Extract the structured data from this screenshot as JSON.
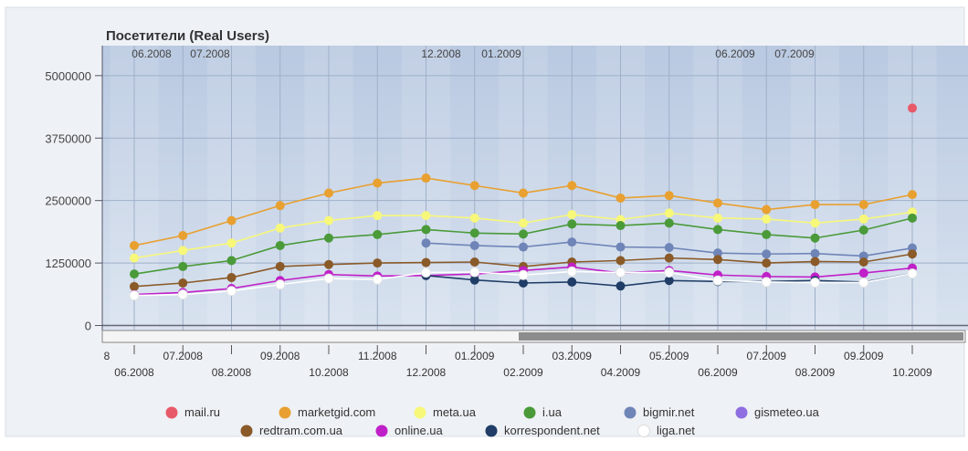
{
  "chart_data": {
    "type": "line",
    "title": "Посетители (Real Users)",
    "x": [
      "06.2008",
      "07.2008",
      "08.2008",
      "09.2008",
      "10.2008",
      "11.2008",
      "12.2008",
      "01.2009",
      "02.2009",
      "03.2009",
      "04.2009",
      "05.2009",
      "06.2009",
      "07.2009",
      "08.2009",
      "09.2009",
      "10.2009"
    ],
    "x_tick_labels_upper": [
      "07.2008",
      "09.2008",
      "11.2008",
      "01.2009",
      "03.2009",
      "05.2009",
      "07.2009",
      "09.2009"
    ],
    "x_tick_labels_lower": [
      "06.2008",
      "08.2008",
      "10.2008",
      "12.2008",
      "02.2009",
      "04.2009",
      "06.2009",
      "08.2009",
      "10.2009"
    ],
    "x_partial_label": "8",
    "top_period_labels": [
      "06.2008",
      "07.2008",
      "12.2008",
      "01.2009",
      "06.2009",
      "07.2009"
    ],
    "ylim": [
      -100000,
      5600000
    ],
    "y_ticks": [
      0,
      1250000,
      2500000,
      3750000,
      5000000
    ],
    "y_tick_labels": [
      "0",
      "1250000",
      "2500000",
      "3750000",
      "5000000"
    ],
    "grid": true,
    "legend_position": "bottom",
    "series": [
      {
        "name": "mail.ru",
        "color": "#e85a6a",
        "values": [
          null,
          null,
          null,
          null,
          null,
          null,
          null,
          null,
          null,
          null,
          null,
          null,
          null,
          null,
          null,
          null,
          4350000
        ]
      },
      {
        "name": "marketgid.com",
        "color": "#e8a030",
        "values": [
          1600000,
          1800000,
          2100000,
          2400000,
          2650000,
          2850000,
          2950000,
          2800000,
          2650000,
          2800000,
          2550000,
          2600000,
          2450000,
          2320000,
          2420000,
          2420000,
          2620000
        ]
      },
      {
        "name": "meta.ua",
        "color": "#f7f77a",
        "values": [
          1350000,
          1500000,
          1650000,
          1950000,
          2100000,
          2200000,
          2200000,
          2150000,
          2050000,
          2220000,
          2120000,
          2250000,
          2150000,
          2130000,
          2050000,
          2130000,
          2270000
        ]
      },
      {
        "name": "i.ua",
        "color": "#4a9a3a",
        "values": [
          1030000,
          1180000,
          1300000,
          1600000,
          1750000,
          1820000,
          1920000,
          1850000,
          1830000,
          2030000,
          2000000,
          2050000,
          1920000,
          1820000,
          1750000,
          1910000,
          2150000
        ]
      },
      {
        "name": "bigmir.net",
        "color": "#6f85b8",
        "values": [
          null,
          null,
          null,
          null,
          null,
          null,
          1650000,
          1600000,
          1570000,
          1670000,
          1570000,
          1560000,
          1450000,
          1430000,
          1440000,
          1390000,
          1550000
        ]
      },
      {
        "name": "gismeteo.ua",
        "color": "#8e6ee0",
        "values": [
          null,
          null,
          null,
          null,
          null,
          null,
          null,
          null,
          null,
          null,
          null,
          null,
          null,
          null,
          null,
          null,
          null
        ]
      },
      {
        "name": "redtram.com.ua",
        "color": "#8a5a28",
        "values": [
          780000,
          850000,
          960000,
          1180000,
          1220000,
          1250000,
          1260000,
          1270000,
          1180000,
          1270000,
          1300000,
          1350000,
          1320000,
          1250000,
          1280000,
          1270000,
          1430000
        ]
      },
      {
        "name": "online.ua",
        "color": "#c020c8",
        "values": [
          620000,
          660000,
          740000,
          900000,
          1020000,
          990000,
          1000000,
          1030000,
          1100000,
          1170000,
          1050000,
          1100000,
          1010000,
          980000,
          970000,
          1050000,
          1150000
        ]
      },
      {
        "name": "korrespondent.net",
        "color": "#1f3d66",
        "values": [
          null,
          null,
          null,
          null,
          null,
          null,
          1000000,
          910000,
          850000,
          870000,
          790000,
          900000,
          880000,
          880000,
          900000,
          870000,
          1040000
        ]
      },
      {
        "name": "liga.net",
        "color": "#ffffff",
        "values": [
          600000,
          620000,
          690000,
          820000,
          940000,
          920000,
          1060000,
          1070000,
          1010000,
          1080000,
          1060000,
          1060000,
          900000,
          870000,
          860000,
          860000,
          1040000
        ]
      }
    ]
  }
}
